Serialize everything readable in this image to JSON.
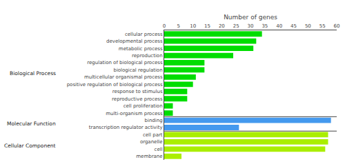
{
  "chart_data": {
    "type": "bar",
    "orientation": "horizontal",
    "categories": [
      "cellular process",
      "developmental process",
      "metabolic process",
      "reproduction",
      "regulation of biological process",
      "biological regulation",
      "multicellular organismal process",
      "positive regulation of biological process",
      "response to stimulus",
      "reproductive process",
      "cell proliferation",
      "multi-organism process",
      "binding",
      "transcription regulator activity",
      "cell part",
      "organelle",
      "cell",
      "membrane"
    ],
    "values": [
      34,
      32,
      31,
      24,
      14,
      14,
      11,
      10,
      8,
      8,
      3,
      3,
      58,
      26,
      57,
      57,
      56,
      6
    ],
    "colors": [
      "#00dd00",
      "#00dd00",
      "#00dd00",
      "#00dd00",
      "#00dd00",
      "#00dd00",
      "#00dd00",
      "#00dd00",
      "#00dd00",
      "#00dd00",
      "#00dd00",
      "#00dd00",
      "#4499ee",
      "#4499ee",
      "#aaee00",
      "#aaee00",
      "#aaee00",
      "#aaee00"
    ],
    "annotations": [
      {
        "text": "Biological Process",
        "from": "cellular process",
        "to": "multi-organism process"
      },
      {
        "text": "Molecular Function",
        "from": "binding",
        "to": "transcription regulator activity"
      },
      {
        "text": "Cellular Component",
        "from": "cell part",
        "to": "membrane"
      }
    ],
    "xlabel": "Number of genes",
    "xlim": [
      0,
      60
    ],
    "xticks": [
      0,
      5,
      10,
      15,
      20,
      25,
      30,
      35,
      40,
      45,
      50,
      55,
      60
    ],
    "grid": false
  }
}
